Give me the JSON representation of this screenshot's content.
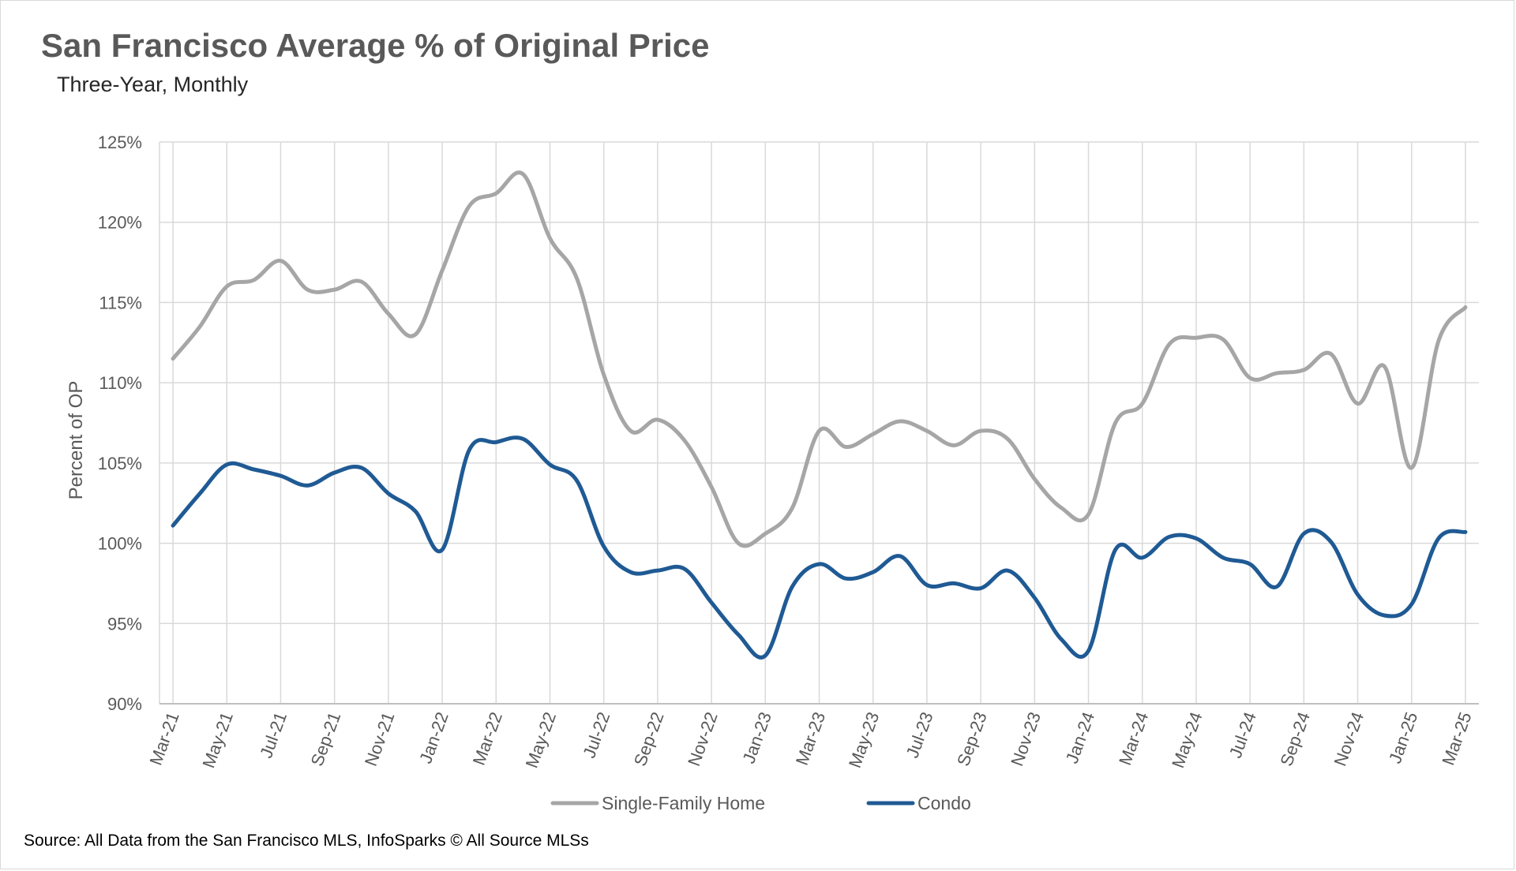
{
  "header": {
    "title": "San Francisco Average % of Original Price",
    "subtitle": "Three-Year, Monthly"
  },
  "footer": {
    "source": "Source: All Data from the San Francisco MLS, InfoSparks © All Source MLSs"
  },
  "colors": {
    "single_family": "#a6a6a6",
    "condo": "#1f5a94",
    "grid": "#d9d9d9",
    "axis_text": "#595959"
  },
  "chart_data": {
    "type": "line",
    "title": "San Francisco Average % of Original Price",
    "subtitle": "Three-Year, Monthly",
    "xlabel": "",
    "ylabel": "Percent of OP",
    "ylim": [
      90,
      125
    ],
    "yticks": [
      "90%",
      "95%",
      "100%",
      "105%",
      "110%",
      "115%",
      "120%",
      "125%"
    ],
    "grid": true,
    "legend_position": "bottom",
    "x": [
      "Mar-21",
      "Apr-21",
      "May-21",
      "Jun-21",
      "Jul-21",
      "Aug-21",
      "Sep-21",
      "Oct-21",
      "Nov-21",
      "Dec-21",
      "Jan-22",
      "Feb-22",
      "Mar-22",
      "Apr-22",
      "May-22",
      "Jun-22",
      "Jul-22",
      "Aug-22",
      "Sep-22",
      "Oct-22",
      "Nov-22",
      "Dec-22",
      "Jan-23",
      "Feb-23",
      "Mar-23",
      "Apr-23",
      "May-23",
      "Jun-23",
      "Jul-23",
      "Aug-23",
      "Sep-23",
      "Oct-23",
      "Nov-23",
      "Dec-23",
      "Jan-24",
      "Feb-24",
      "Mar-24",
      "Apr-24",
      "May-24",
      "Jun-24",
      "Jul-24",
      "Aug-24",
      "Sep-24",
      "Oct-24",
      "Nov-24",
      "Dec-24",
      "Jan-25",
      "Feb-25",
      "Mar-25"
    ],
    "xtick_labels": [
      "Mar-21",
      "May-21",
      "Jul-21",
      "Sep-21",
      "Nov-21",
      "Jan-22",
      "Mar-22",
      "May-22",
      "Jul-22",
      "Sep-22",
      "Nov-22",
      "Jan-23",
      "Mar-23",
      "May-23",
      "Jul-23",
      "Sep-23",
      "Nov-23",
      "Jan-24",
      "Mar-24",
      "May-24",
      "Jul-24",
      "Sep-24",
      "Nov-24",
      "Jan-25",
      "Mar-25"
    ],
    "series": [
      {
        "name": "Single-Family Home",
        "values": [
          111.5,
          113.5,
          116.0,
          116.4,
          117.6,
          115.8,
          115.8,
          116.3,
          114.3,
          113.0,
          117.0,
          121.0,
          121.8,
          123.0,
          119.0,
          116.5,
          110.5,
          107.0,
          107.7,
          106.4,
          103.5,
          100.0,
          100.6,
          102.2,
          107.0,
          106.0,
          106.8,
          107.6,
          107.0,
          106.1,
          107.0,
          106.5,
          104.0,
          102.2,
          101.8,
          107.5,
          108.7,
          112.4,
          112.8,
          112.7,
          110.3,
          110.6,
          110.8,
          111.8,
          108.7,
          111.0,
          104.7,
          112.6,
          114.7
        ]
      },
      {
        "name": "Condo",
        "values": [
          101.1,
          103.1,
          104.9,
          104.6,
          104.2,
          103.6,
          104.4,
          104.7,
          103.1,
          102.0,
          99.6,
          105.8,
          106.3,
          106.5,
          104.9,
          103.9,
          99.8,
          98.2,
          98.3,
          98.4,
          96.3,
          94.3,
          93.0,
          97.3,
          98.7,
          97.8,
          98.2,
          99.2,
          97.4,
          97.5,
          97.2,
          98.3,
          96.6,
          94.0,
          93.3,
          99.6,
          99.1,
          100.4,
          100.3,
          99.1,
          98.7,
          97.3,
          100.6,
          100.1,
          96.8,
          95.5,
          96.2,
          100.3,
          100.7
        ]
      }
    ]
  }
}
